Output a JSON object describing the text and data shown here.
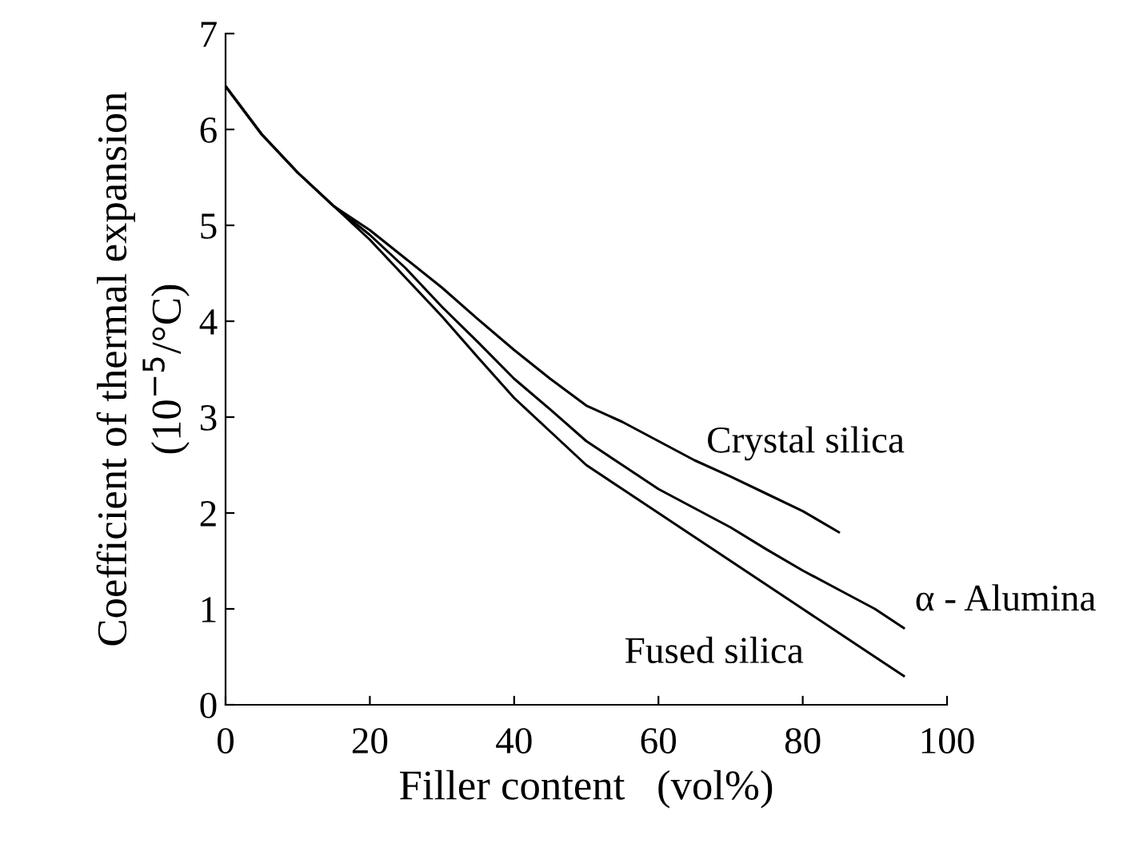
{
  "chart_data": {
    "type": "line",
    "xlabel": "Filler content   (vol%)",
    "ylabel": "Coefficient of thermal expansion\n(10$^{−5}$/°C)",
    "xlim": [
      0,
      100
    ],
    "xticks": [
      0,
      20,
      40,
      60,
      80,
      100
    ],
    "ylim": [
      0,
      7
    ],
    "yticks": [
      0,
      1,
      2,
      3,
      4,
      5,
      6,
      7
    ],
    "grid": false,
    "legend": false,
    "marker": "none",
    "line_style": "solid",
    "series": [
      {
        "name": "Crystal silica",
        "color": "#000000",
        "x": [
          0,
          5,
          10,
          15,
          20,
          25,
          30,
          35,
          40,
          45,
          50,
          55,
          60,
          65,
          70,
          75,
          80,
          85
        ],
        "values": [
          6.45,
          5.95,
          5.55,
          5.2,
          4.95,
          4.65,
          4.35,
          4.02,
          3.7,
          3.4,
          3.12,
          2.95,
          2.75,
          2.55,
          2.38,
          2.2,
          2.02,
          1.8
        ]
      },
      {
        "name": "α - Alumina",
        "color": "#000000",
        "x": [
          0,
          5,
          10,
          15,
          20,
          25,
          30,
          35,
          40,
          45,
          50,
          55,
          60,
          65,
          70,
          75,
          80,
          85,
          90,
          94
        ],
        "values": [
          6.45,
          5.95,
          5.55,
          5.2,
          4.9,
          4.55,
          4.15,
          3.78,
          3.4,
          3.08,
          2.75,
          2.5,
          2.25,
          2.05,
          1.85,
          1.62,
          1.4,
          1.2,
          1.0,
          0.8
        ]
      },
      {
        "name": "Fused silica",
        "color": "#000000",
        "x": [
          0,
          5,
          10,
          15,
          20,
          25,
          30,
          35,
          40,
          45,
          50,
          55,
          60,
          65,
          70,
          75,
          80,
          85,
          90,
          94
        ],
        "values": [
          6.45,
          5.95,
          5.55,
          5.2,
          4.85,
          4.45,
          4.05,
          3.62,
          3.2,
          2.85,
          2.5,
          2.25,
          2.0,
          1.75,
          1.5,
          1.25,
          1.0,
          0.75,
          0.5,
          0.3
        ]
      }
    ]
  }
}
